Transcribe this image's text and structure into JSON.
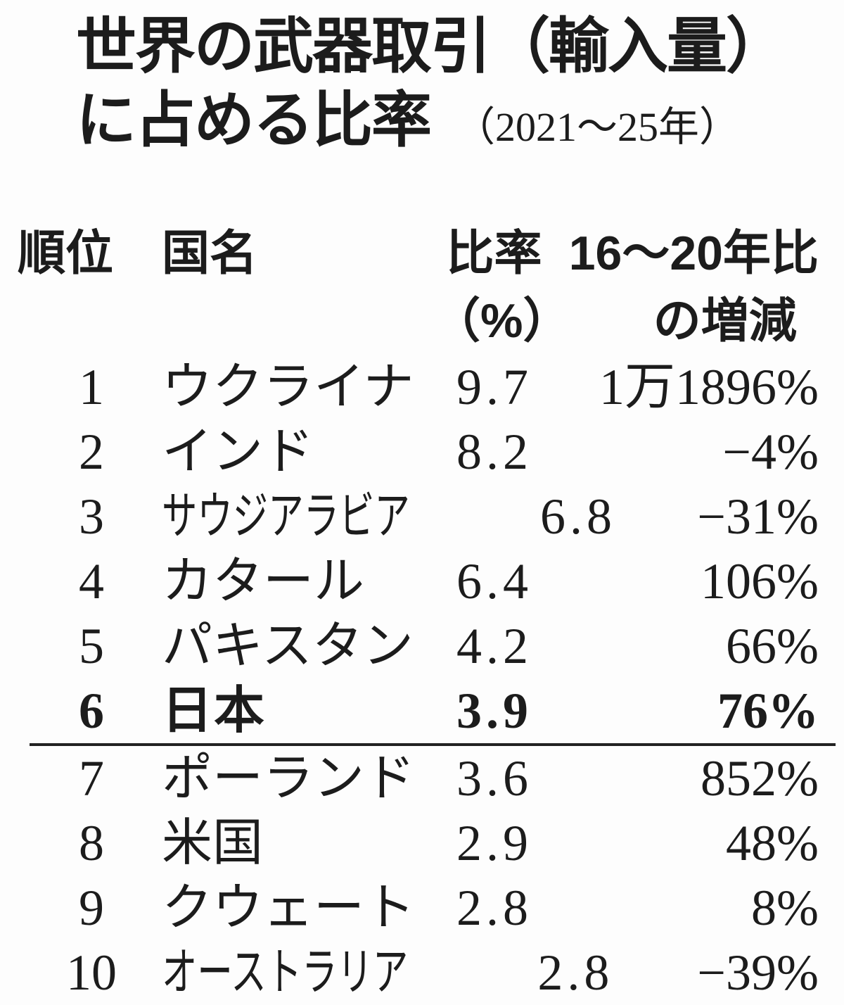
{
  "page": {
    "background": "#fdfdfd",
    "text_color": "#1c1c1c"
  },
  "title": {
    "line1": "世界の武器取引（輸入量）",
    "line2": "に占める比率",
    "period": "（2021～25年）"
  },
  "table": {
    "headers": {
      "rank": "順位",
      "country": "国名",
      "ratio_line1": "比率",
      "ratio_line2": "（%）",
      "change_line1": "16～20年比",
      "change_line2": "の増減"
    },
    "divider_after_row": 6,
    "rows": [
      {
        "rank": "1",
        "country": "ウクライナ",
        "ratio": "9.7",
        "change": "1万1896%"
      },
      {
        "rank": "2",
        "country": "インド",
        "ratio": "8.2",
        "change": "−4%"
      },
      {
        "rank": "3",
        "country": "サウジアラビア",
        "ratio": "6.8",
        "change": "−31%",
        "condensed": true
      },
      {
        "rank": "4",
        "country": "カタール",
        "ratio": "6.4",
        "change": "106%"
      },
      {
        "rank": "5",
        "country": "パキスタン",
        "ratio": "4.2",
        "change": "66%"
      },
      {
        "rank": "6",
        "country": "日本",
        "ratio": "3.9",
        "change": "76%",
        "bold": true
      },
      {
        "rank": "7",
        "country": "ポーランド",
        "ratio": "3.6",
        "change": "852%"
      },
      {
        "rank": "8",
        "country": "米国",
        "ratio": "2.9",
        "change": "48%"
      },
      {
        "rank": "9",
        "country": "クウェート",
        "ratio": "2.8",
        "change": "8%"
      },
      {
        "rank": "10",
        "country": "オーストラリア",
        "ratio": "2.8",
        "change": "−39%",
        "condensed": true
      }
    ]
  },
  "chart_data": {
    "type": "table",
    "title": "世界の武器取引（輸入量）に占める比率",
    "subtitle": "（2021～25年）",
    "columns": [
      "順位",
      "国名",
      "比率（%）",
      "16～20年比の増減"
    ],
    "rows": [
      [
        1,
        "ウクライナ",
        9.7,
        "1万1896%"
      ],
      [
        2,
        "インド",
        8.2,
        "−4%"
      ],
      [
        3,
        "サウジアラビア",
        6.8,
        "−31%"
      ],
      [
        4,
        "カタール",
        6.4,
        "106%"
      ],
      [
        5,
        "パキスタン",
        4.2,
        "66%"
      ],
      [
        6,
        "日本",
        3.9,
        "76%"
      ],
      [
        7,
        "ポーランド",
        3.6,
        "852%"
      ],
      [
        8,
        "米国",
        2.9,
        "48%"
      ],
      [
        9,
        "クウェート",
        2.8,
        "8%"
      ],
      [
        10,
        "オーストラリア",
        2.8,
        "−39%"
      ]
    ],
    "notes": "Divider line separates ranks 1–6 from ranks 7–10; rank 6 (日本) is emphasized in bold."
  }
}
